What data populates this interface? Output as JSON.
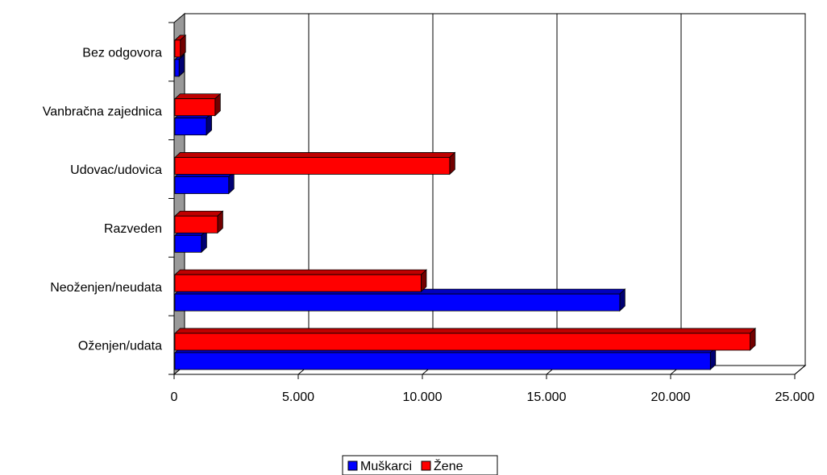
{
  "chart_data": {
    "type": "bar",
    "orientation": "horizontal",
    "categories": [
      "Oženjen/udata",
      "Neoženjen/neudata",
      "Razveden",
      "Udovac/udovica",
      "Vanbračna zajednica",
      "Bez odgovora"
    ],
    "series": [
      {
        "name": "Muškarci",
        "color": "#0000ff",
        "values": [
          21600,
          17950,
          1100,
          2200,
          1300,
          200
        ]
      },
      {
        "name": "Žene",
        "color": "#ff0000",
        "values": [
          23200,
          9950,
          1750,
          11100,
          1650,
          250
        ]
      }
    ],
    "xlim": [
      0,
      25000
    ],
    "x_ticks": [
      0,
      5000,
      10000,
      15000,
      20000,
      25000
    ],
    "x_tick_labels": [
      "0",
      "5.000",
      "10.000",
      "15.000",
      "20.000",
      "25.000"
    ],
    "grid": "vertical",
    "legend_position": "bottom",
    "title": "",
    "xlabel": "",
    "ylabel": ""
  }
}
